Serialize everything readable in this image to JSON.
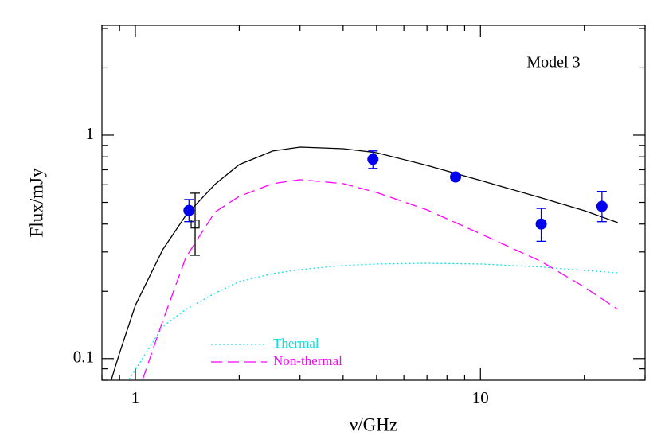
{
  "chart_data": {
    "type": "line",
    "xlabel": "ν/GHz",
    "ylabel": "Flux/mJy",
    "annotation": "Model 3",
    "xscale": "log",
    "yscale": "log",
    "xlim": [
      0.8,
      30
    ],
    "ylim": [
      0.08,
      3.1
    ],
    "xticks": [
      1,
      10
    ],
    "yticks": [
      0.1,
      1
    ],
    "xminorticks": [
      0.8,
      0.9,
      2,
      3,
      4,
      5,
      6,
      7,
      8,
      9,
      20,
      30
    ],
    "yminorticks": [
      0.08,
      0.09,
      0.2,
      0.3,
      0.4,
      0.5,
      0.6,
      0.7,
      0.8,
      0.9,
      2,
      3
    ],
    "legend": "lower left",
    "series": [
      {
        "name": "Thermal",
        "style": "dotted",
        "color": "#00e5e5",
        "x": [
          0.96,
          1.2,
          1.4,
          1.7,
          2,
          2.5,
          3,
          4,
          5,
          7,
          10,
          15,
          20,
          25
        ],
        "values": [
          0.0808,
          0.139,
          0.166,
          0.196,
          0.221,
          0.24,
          0.25,
          0.261,
          0.265,
          0.267,
          0.265,
          0.257,
          0.248,
          0.242
        ]
      },
      {
        "name": "Non-thermal",
        "style": "dashed",
        "color": "#ff00ff",
        "x": [
          1.05,
          1.2,
          1.4,
          1.7,
          2,
          2.5,
          3,
          4,
          5,
          7,
          10,
          15,
          20,
          25
        ],
        "values": [
          0.0808,
          0.147,
          0.283,
          0.452,
          0.532,
          0.607,
          0.632,
          0.607,
          0.554,
          0.463,
          0.362,
          0.272,
          0.209,
          0.166
        ]
      },
      {
        "style": "solid",
        "color": "#000000",
        "x": [
          0.85,
          0.9,
          1,
          1.2,
          1.4,
          1.7,
          2,
          2.5,
          3,
          4,
          5,
          7,
          10,
          15,
          20,
          25
        ],
        "values": [
          0.0795,
          0.106,
          0.173,
          0.307,
          0.437,
          0.602,
          0.738,
          0.849,
          0.884,
          0.87,
          0.835,
          0.732,
          0.627,
          0.524,
          0.459,
          0.406
        ]
      },
      {
        "marker": "filled-circle",
        "color": "#0000ee",
        "x": [
          1.43,
          4.88,
          8.47,
          15.0,
          22.5
        ],
        "values": [
          0.46,
          0.78,
          0.65,
          0.4,
          0.48
        ],
        "error_low": [
          0.05,
          0.07,
          0.02,
          0.065,
          0.07
        ],
        "error_high": [
          0.055,
          0.07,
          0.02,
          0.07,
          0.08
        ]
      },
      {
        "marker": "open-square",
        "color": "#000000",
        "x": [
          1.49
        ],
        "values": [
          0.4
        ],
        "error_low": [
          0.11
        ],
        "error_high": [
          0.15
        ]
      }
    ]
  }
}
